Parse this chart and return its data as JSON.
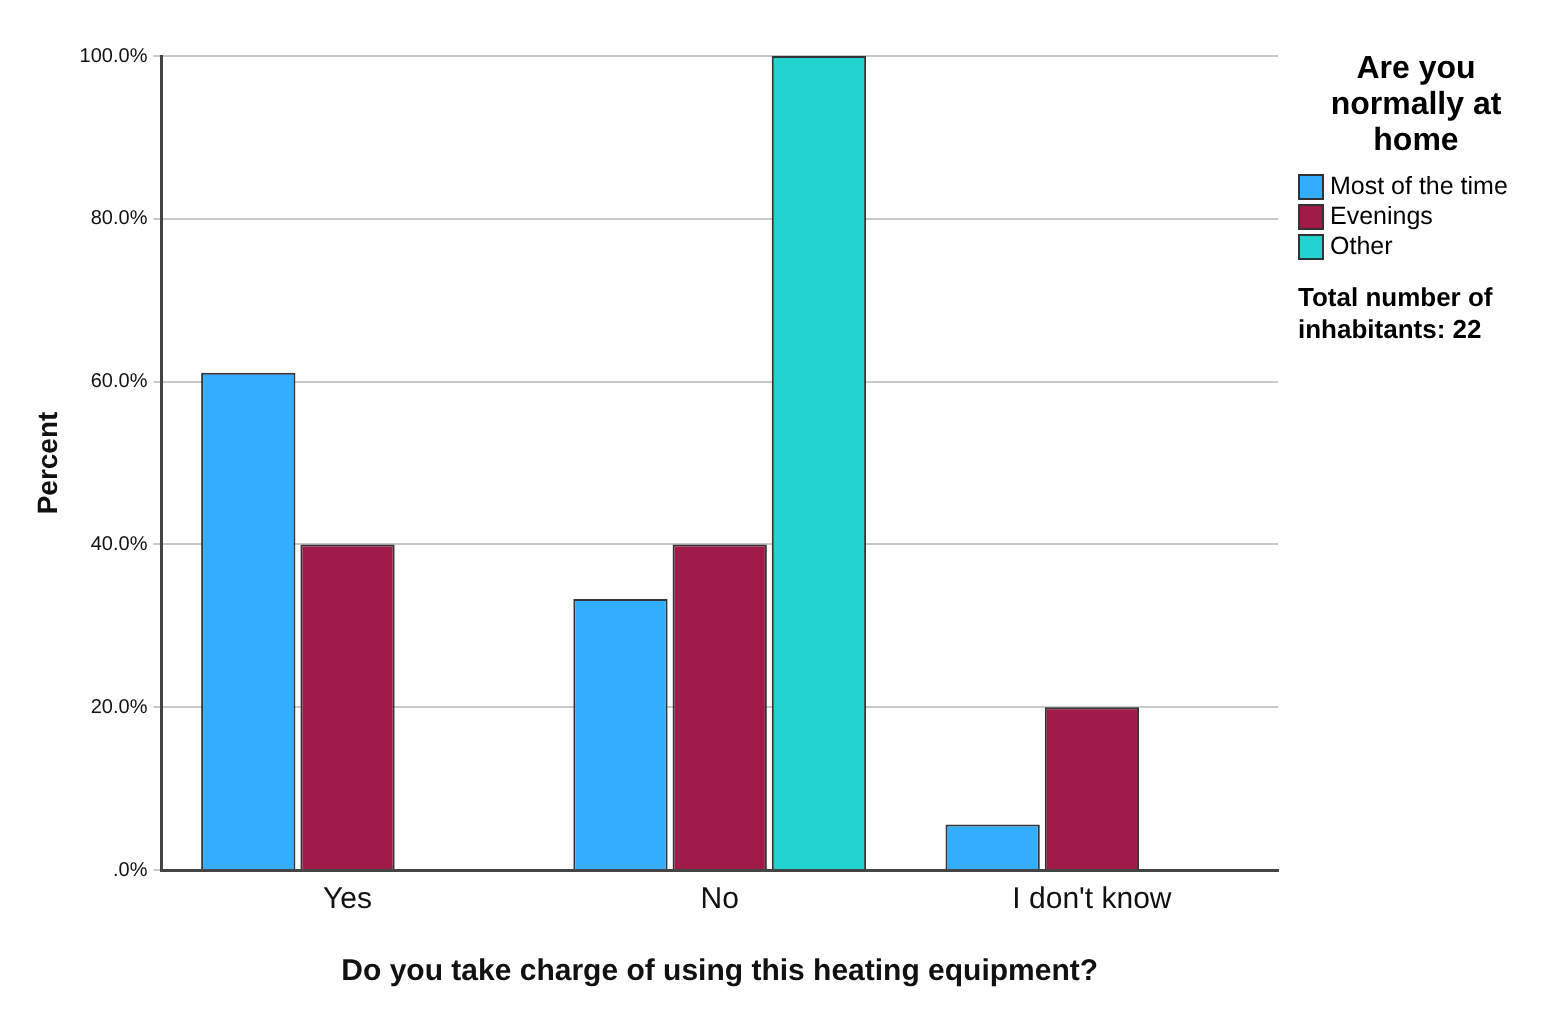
{
  "chart_data": {
    "type": "bar",
    "xlabel": "Do you take charge of using this heating equipment?",
    "ylabel": "Percent",
    "legend_title": "Are you normally at home",
    "categories": [
      "Yes",
      "No",
      "I don't know"
    ],
    "series": [
      {
        "name": "Most of the time",
        "color": "#33adff",
        "values": [
          61.1,
          33.3,
          5.6
        ]
      },
      {
        "name": "Evenings",
        "color": "#a01a4a",
        "values": [
          40,
          40,
          20
        ]
      },
      {
        "name": "Other",
        "color": "#22d3d0",
        "values": [
          0,
          100,
          0
        ]
      }
    ],
    "ylim": [
      0,
      100
    ],
    "yticks": [
      {
        "value": 0,
        "label": ".0%"
      },
      {
        "value": 20,
        "label": "20.0%"
      },
      {
        "value": 40,
        "label": "40.0%"
      },
      {
        "value": 60,
        "label": "60.0%"
      },
      {
        "value": 80,
        "label": "80.0%"
      },
      {
        "value": 100,
        "label": "100.0%"
      }
    ],
    "grid": "y",
    "legend": "top right",
    "annotations": [
      "Total number of inhabitants: 22"
    ]
  }
}
